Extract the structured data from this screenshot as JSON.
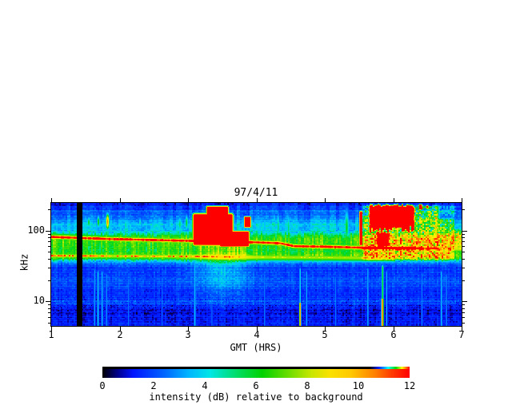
{
  "chart_data": {
    "type": "heatmap",
    "title": "97/4/11",
    "xlabel": "GMT (HRS)",
    "ylabel": "kHz",
    "x_range": [
      1,
      7
    ],
    "x_ticks": [
      1,
      2,
      3,
      4,
      5,
      6,
      7
    ],
    "y_scale": "log",
    "y_range_khz": [
      4.5,
      245
    ],
    "y_major_ticks": [
      10,
      100
    ],
    "y_minor_ticks": [
      5,
      6,
      7,
      8,
      9,
      20,
      30,
      40,
      50,
      60,
      70,
      80,
      90,
      200
    ],
    "colorbar": {
      "label": "intensity (dB) relative to background",
      "ticks": [
        0,
        2,
        4,
        6,
        8,
        10,
        12
      ],
      "range": [
        0,
        12
      ]
    },
    "colormap_stops": [
      [
        0.0,
        0,
        0,
        0
      ],
      [
        0.02,
        5,
        0,
        45
      ],
      [
        0.06,
        8,
        0,
        160
      ],
      [
        0.1,
        0,
        20,
        255
      ],
      [
        0.18,
        0,
        70,
        255
      ],
      [
        0.26,
        0,
        130,
        255
      ],
      [
        0.33,
        0,
        190,
        255
      ],
      [
        0.38,
        0,
        220,
        225
      ],
      [
        0.44,
        0,
        225,
        130
      ],
      [
        0.5,
        0,
        215,
        30
      ],
      [
        0.58,
        85,
        225,
        0
      ],
      [
        0.66,
        195,
        235,
        0
      ],
      [
        0.72,
        252,
        240,
        0
      ],
      [
        0.8,
        255,
        200,
        0
      ],
      [
        0.87,
        255,
        128,
        0
      ],
      [
        0.93,
        255,
        60,
        0
      ],
      [
        1.0,
        255,
        0,
        0
      ]
    ],
    "data_gap_hours": [
      1.375,
      1.457
    ],
    "background_profile_khz_db": [
      [
        4.5,
        1.6
      ],
      [
        5.5,
        1.35
      ],
      [
        7,
        1.15
      ],
      [
        8.5,
        1.4
      ],
      [
        10,
        2.2
      ],
      [
        11.5,
        1.7
      ],
      [
        13,
        1.6
      ],
      [
        16,
        2.0
      ],
      [
        19,
        2.4
      ],
      [
        22,
        2.1
      ],
      [
        25,
        1.85
      ],
      [
        28,
        1.95
      ],
      [
        31,
        2.15
      ],
      [
        34,
        2.7
      ],
      [
        37,
        4.2
      ],
      [
        40,
        6.2
      ],
      [
        44,
        6.8
      ],
      [
        50,
        6.3
      ],
      [
        57,
        6.3
      ],
      [
        65,
        6.6
      ],
      [
        75,
        6.7
      ],
      [
        85,
        6.0
      ],
      [
        92,
        4.8
      ],
      [
        100,
        4.3
      ],
      [
        112,
        4.1
      ],
      [
        125,
        4.0
      ],
      [
        140,
        3.6
      ],
      [
        155,
        2.8
      ],
      [
        168,
        2.3
      ],
      [
        178,
        2.6
      ],
      [
        188,
        3.0
      ],
      [
        196,
        2.1
      ],
      [
        205,
        1.7
      ],
      [
        214,
        2.3
      ],
      [
        222,
        1.5
      ],
      [
        232,
        1.35
      ],
      [
        245,
        1.2
      ]
    ],
    "ridges": [
      {
        "name": "plasma-line-upper",
        "fc": [
          [
            1,
            81
          ],
          [
            1.8,
            76
          ],
          [
            2.6,
            73
          ],
          [
            3.4,
            70
          ],
          [
            4.0,
            68
          ],
          [
            4.35,
            66
          ],
          [
            4.55,
            60
          ],
          [
            5.0,
            59
          ],
          [
            5.6,
            57
          ],
          [
            6.2,
            56
          ],
          [
            7,
            55
          ]
        ],
        "amp": [
          [
            1,
            12.5
          ],
          [
            6.3,
            12.5
          ],
          [
            6.6,
            8.5
          ],
          [
            7,
            8
          ]
        ],
        "sig": 0.022,
        "fringe_amp": 8,
        "fringe_sig": 0.055
      },
      {
        "name": "band-44khz",
        "fc": [
          [
            1,
            44
          ],
          [
            2,
            43.5
          ],
          [
            3,
            43
          ],
          [
            4,
            42
          ],
          [
            5,
            41.5
          ],
          [
            5.6,
            41
          ],
          [
            7,
            41
          ]
        ],
        "amp": [
          [
            1,
            10
          ],
          [
            3,
            9.5
          ],
          [
            3.6,
            8.5
          ],
          [
            4,
            7
          ],
          [
            4.6,
            7.5
          ],
          [
            5.2,
            7
          ],
          [
            5.6,
            5.5
          ],
          [
            6.1,
            0
          ],
          [
            7,
            0
          ]
        ],
        "sig": 0.018,
        "fringe_amp": 7.6,
        "fringe_sig": 0.05
      }
    ],
    "blobs": [
      {
        "t": [
          3.03,
          3.7
        ],
        "f": [
          56,
          190
        ],
        "v": 13,
        "st": 0.07,
        "sf": 0.07
      },
      {
        "t": [
          3.24,
          3.62
        ],
        "f": [
          95,
          235
        ],
        "v": 13,
        "st": 0.05,
        "sf": 0.05
      },
      {
        "t": [
          3.42,
          3.94
        ],
        "f": [
          55,
          105
        ],
        "v": 12.6,
        "st": 0.07,
        "sf": 0.05
      },
      {
        "t": [
          3.8,
          3.94
        ],
        "f": [
          105,
          165
        ],
        "v": 12.4,
        "st": 0.035,
        "sf": 0.035
      },
      {
        "t": [
          5.62,
          6.34
        ],
        "f": [
          95,
          243
        ],
        "v": 13,
        "st": 0.06,
        "sf": 0.06,
        "wob": 0.05
      },
      {
        "t": [
          5.49,
          5.565
        ],
        "f": [
          57,
          200
        ],
        "v": 12,
        "st": 0.025,
        "sf": 0.05
      },
      {
        "t": [
          5.72,
          5.98
        ],
        "f": [
          52,
          105
        ],
        "v": 11.3,
        "st": 0.06,
        "sf": 0.07,
        "wob": 0.04
      },
      {
        "t": [
          6.36,
          6.44
        ],
        "f": [
          190,
          243
        ],
        "v": 12.2,
        "st": 0.03,
        "sf": 0.03
      },
      {
        "t": [
          6.47,
          6.53
        ],
        "f": [
          200,
          235
        ],
        "v": 11.8,
        "st": 0.03,
        "sf": 0.03
      },
      {
        "t": [
          6.57,
          6.63
        ],
        "f": [
          105,
          126
        ],
        "v": 9,
        "st": 0.03,
        "sf": 0.03
      }
    ],
    "mottle_regions": [
      {
        "t": [
          5.52,
          6.7
        ],
        "f": [
          36,
          243
        ],
        "amp": 4.2,
        "st": 0.08,
        "sf": 0.07
      },
      {
        "t": [
          6.6,
          6.92
        ],
        "f": [
          36,
          160
        ],
        "amp": 3.6,
        "st": 0.08,
        "sf": 0.07
      },
      {
        "t": [
          6.55,
          6.95
        ],
        "f": [
          150,
          243
        ],
        "amp": 2.2,
        "st": 0.08,
        "sf": 0.07
      },
      {
        "t": [
          6.82,
          7.05
        ],
        "f": [
          55,
          110
        ],
        "amp": 3.2,
        "st": 0.06,
        "sf": 0.06
      }
    ],
    "glows_add": [
      {
        "t": 3.5,
        "f": 28,
        "v": 2.0,
        "st": 0.28,
        "sf": 0.28
      }
    ],
    "ovals": [
      {
        "t": 1.55,
        "f": 130,
        "v": 6.0,
        "st": 0.022,
        "sf": 0.07
      },
      {
        "t": 1.69,
        "f": 132,
        "v": 6.5,
        "st": 0.018,
        "sf": 0.08
      },
      {
        "t": 1.825,
        "f": 133,
        "v": 10.5,
        "st": 0.02,
        "sf": 0.09
      },
      {
        "t": 2.3,
        "f": 128,
        "v": 5.0,
        "st": 0.02,
        "sf": 0.07
      },
      {
        "t": 2.88,
        "f": 122,
        "v": 5.5,
        "st": 0.025,
        "sf": 0.1
      },
      {
        "t": 2.98,
        "f": 128,
        "v": 6.0,
        "st": 0.02,
        "sf": 0.1
      },
      {
        "t": 4.32,
        "f": 110,
        "v": 5.5,
        "st": 0.02,
        "sf": 0.18
      },
      {
        "t": 4.47,
        "f": 108,
        "v": 5.5,
        "st": 0.02,
        "sf": 0.18
      },
      {
        "t": 4.33,
        "f": 66,
        "v": 9.5,
        "st": 0.07,
        "sf": 0.045
      },
      {
        "t": 5.32,
        "f": 110,
        "v": 6.0,
        "st": 0.03,
        "sf": 0.22
      },
      {
        "t": 6.53,
        "f": 150,
        "v": 6.0,
        "st": 0.03,
        "sf": 0.1
      },
      {
        "t": 6.63,
        "f": 132,
        "v": 6.5,
        "st": 0.025,
        "sf": 0.12
      },
      {
        "t": 6.87,
        "f": 70,
        "v": 7.0,
        "st": 0.03,
        "sf": 0.12
      }
    ],
    "streaks": [
      {
        "t": 1.635,
        "ftop": 32,
        "v": 3.6,
        "w": 0.01
      },
      {
        "t": 1.685,
        "ftop": 30,
        "v": 4.2,
        "w": 0.012
      },
      {
        "t": 1.745,
        "ftop": 30,
        "v": 3.9,
        "w": 0.011
      },
      {
        "t": 1.81,
        "ftop": 27,
        "v": 3.4,
        "w": 0.01
      },
      {
        "t": 2.13,
        "ftop": 24,
        "v": 2.9,
        "w": 0.009
      },
      {
        "t": 2.62,
        "ftop": 20,
        "v": 2.7,
        "w": 0.009
      },
      {
        "t": 3.1,
        "ftop": 45,
        "v": 4.0,
        "w": 0.012
      },
      {
        "t": 3.35,
        "ftop": 24,
        "v": 2.8,
        "w": 0.009
      },
      {
        "t": 4.12,
        "ftop": 28,
        "v": 3.0,
        "w": 0.01
      },
      {
        "t": 4.64,
        "ftop": 33,
        "v": 4.6,
        "w": 0.01,
        "hot": {
          "f": 9.5,
          "v": 10.5
        }
      },
      {
        "t": 4.735,
        "ftop": 30,
        "v": 3.8,
        "w": 0.009
      },
      {
        "t": 5.16,
        "ftop": 25,
        "v": 3.0,
        "w": 0.009
      },
      {
        "t": 5.63,
        "ftop": 33,
        "v": 3.8,
        "w": 0.01
      },
      {
        "t": 5.845,
        "ftop": 36,
        "v": 6.2,
        "w": 0.013,
        "hot": {
          "f": 11,
          "v": 11
        }
      },
      {
        "t": 5.905,
        "ftop": 30,
        "v": 4.0,
        "w": 0.009
      },
      {
        "t": 6.42,
        "ftop": 28,
        "v": 3.2,
        "w": 0.009
      },
      {
        "t": 6.705,
        "ftop": 30,
        "v": 4.0,
        "w": 0.011
      },
      {
        "t": 6.78,
        "ftop": 27,
        "v": 3.3,
        "w": 0.009
      }
    ]
  }
}
